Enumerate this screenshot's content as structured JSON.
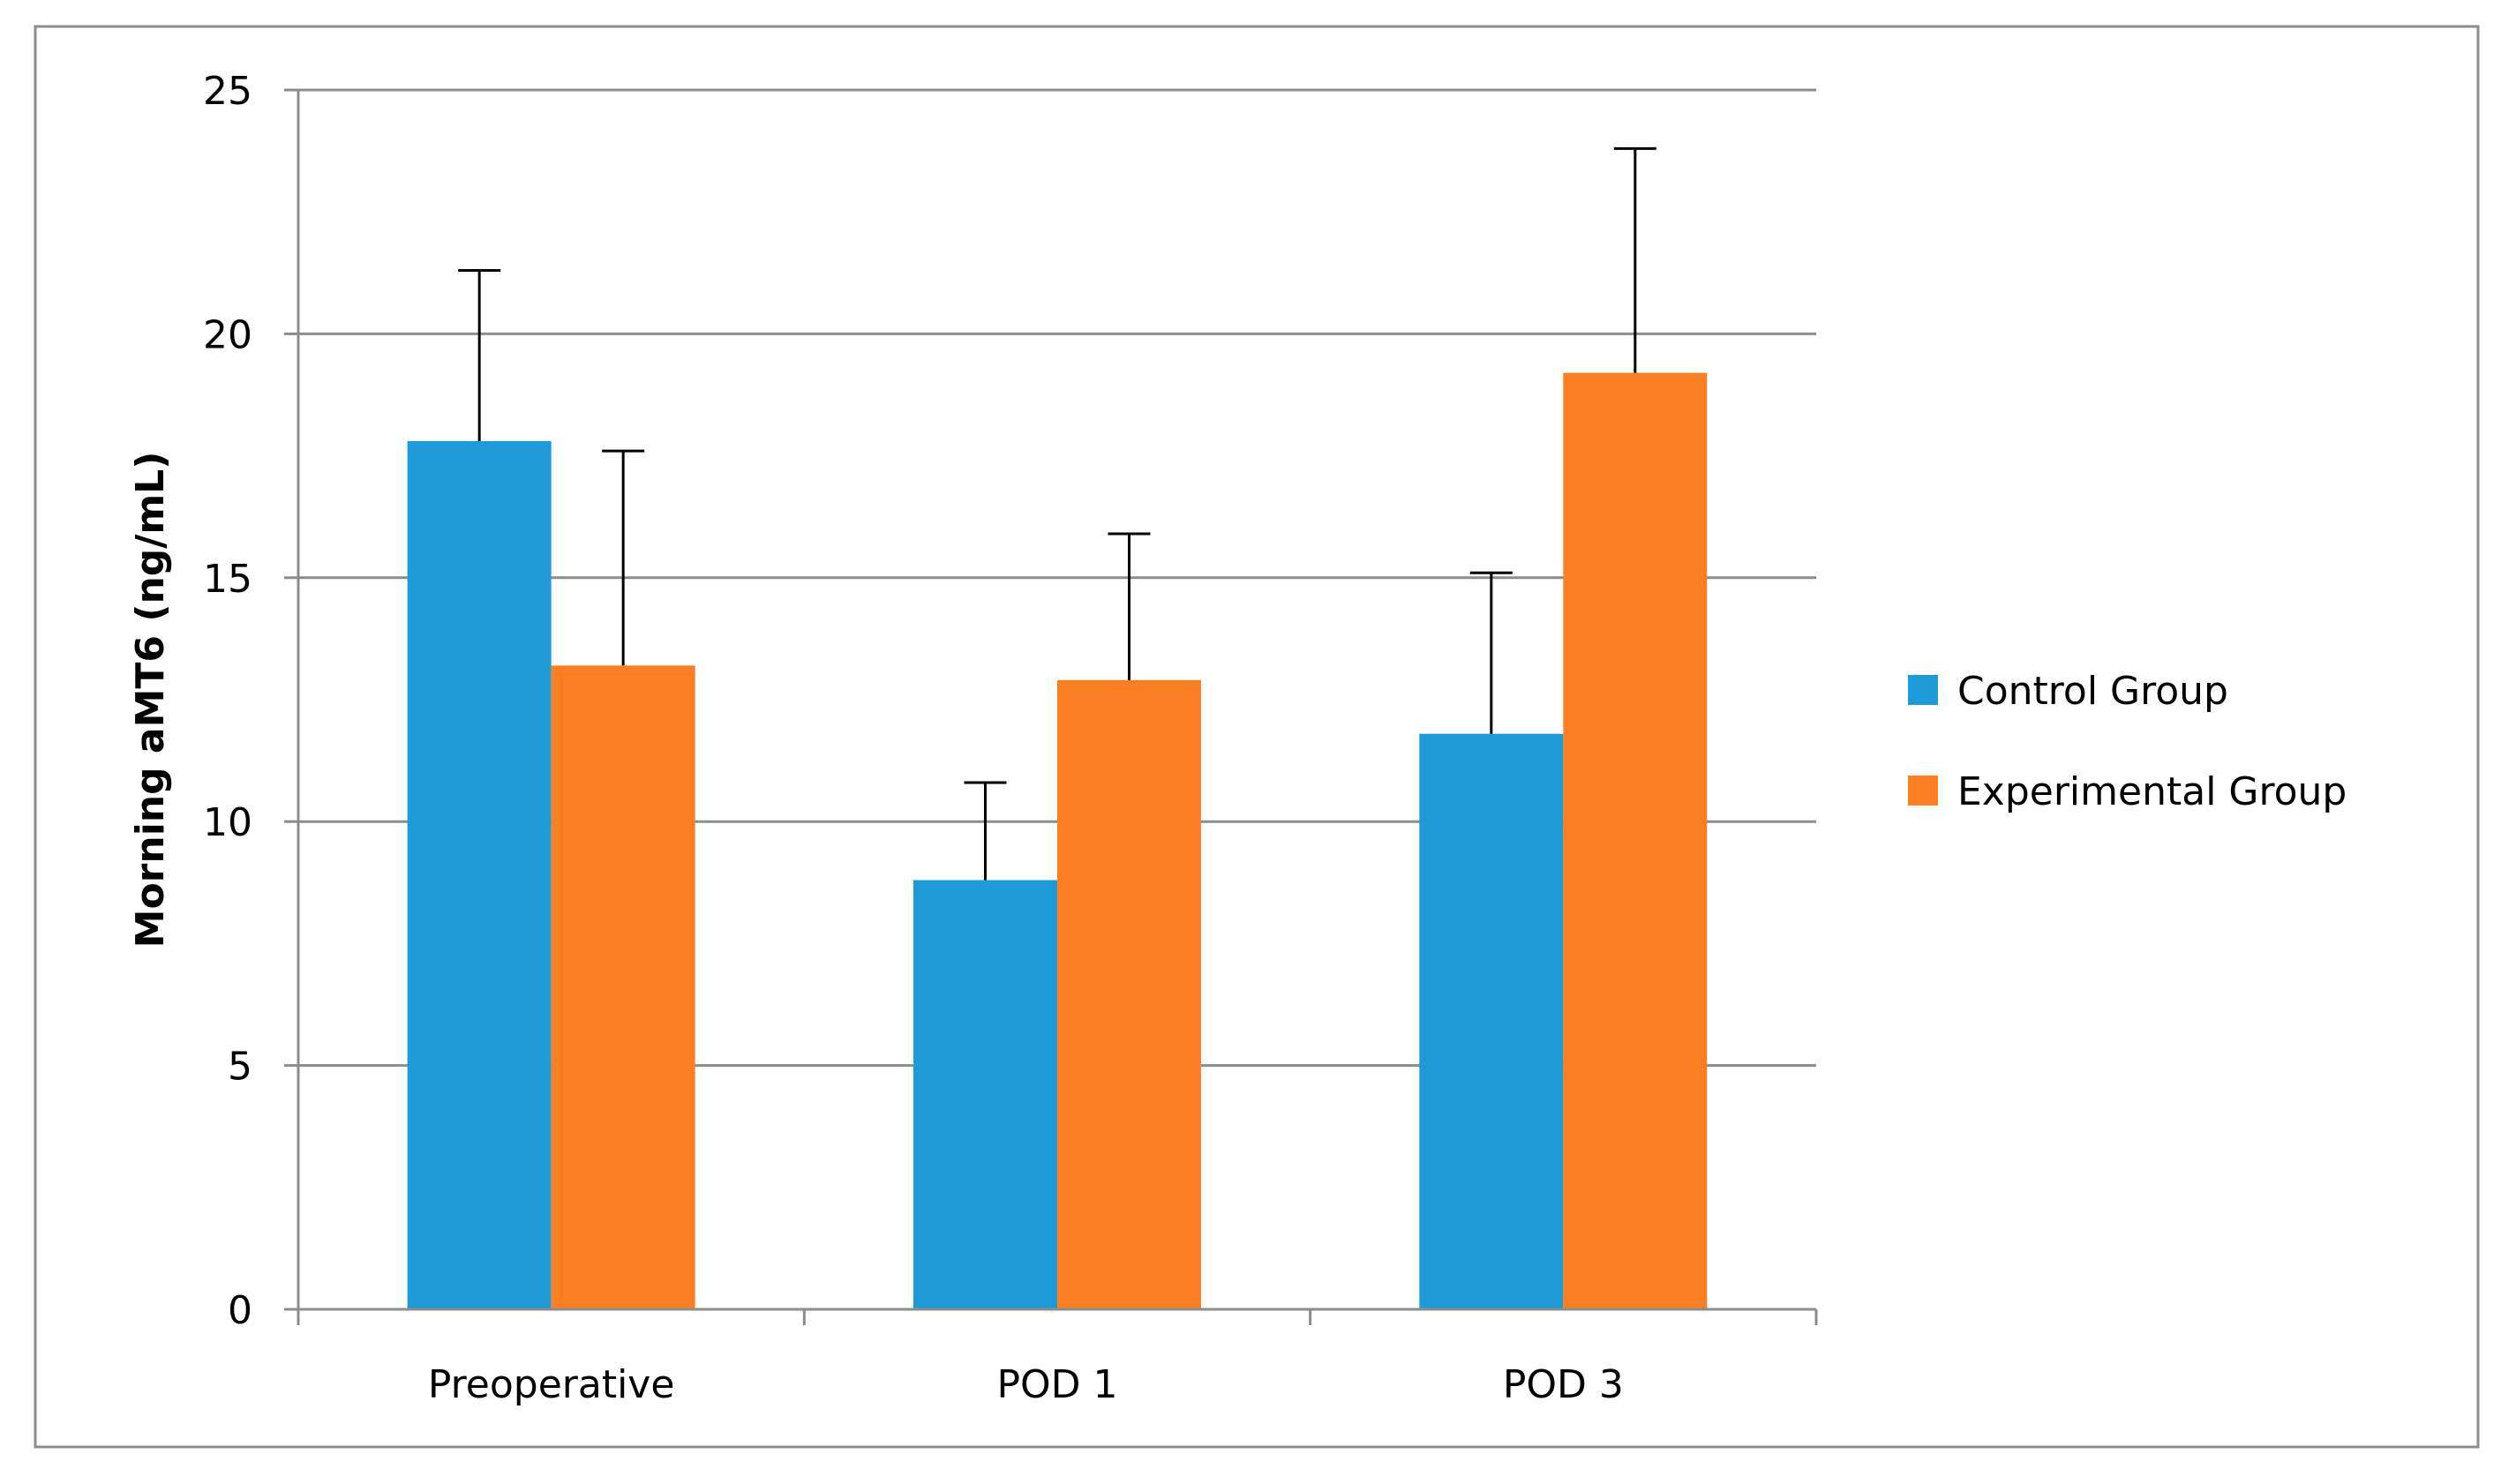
{
  "chart_data": {
    "type": "bar",
    "title": "",
    "xlabel": "",
    "ylabel": "Morning aMT6 (ng/mL)",
    "categories": [
      "Preoperative",
      "POD 1",
      "POD 3"
    ],
    "series": [
      {
        "name": "Control Group",
        "color": "#1e9ad6",
        "values": [
          17.8,
          8.8,
          11.8
        ],
        "error_plus": [
          3.5,
          2.0,
          3.3
        ]
      },
      {
        "name": "Experimental Group",
        "color": "#fd7f23",
        "values": [
          13.2,
          12.9,
          19.2
        ],
        "error_plus": [
          4.4,
          3.0,
          4.6
        ]
      }
    ],
    "ylim": [
      0,
      25
    ],
    "yticks": [
      0,
      5,
      10,
      15,
      20,
      25
    ],
    "ytick_labels": [
      "0",
      "5",
      "10",
      "15",
      "20",
      "25"
    ],
    "grid": true,
    "legend_position": "right"
  }
}
